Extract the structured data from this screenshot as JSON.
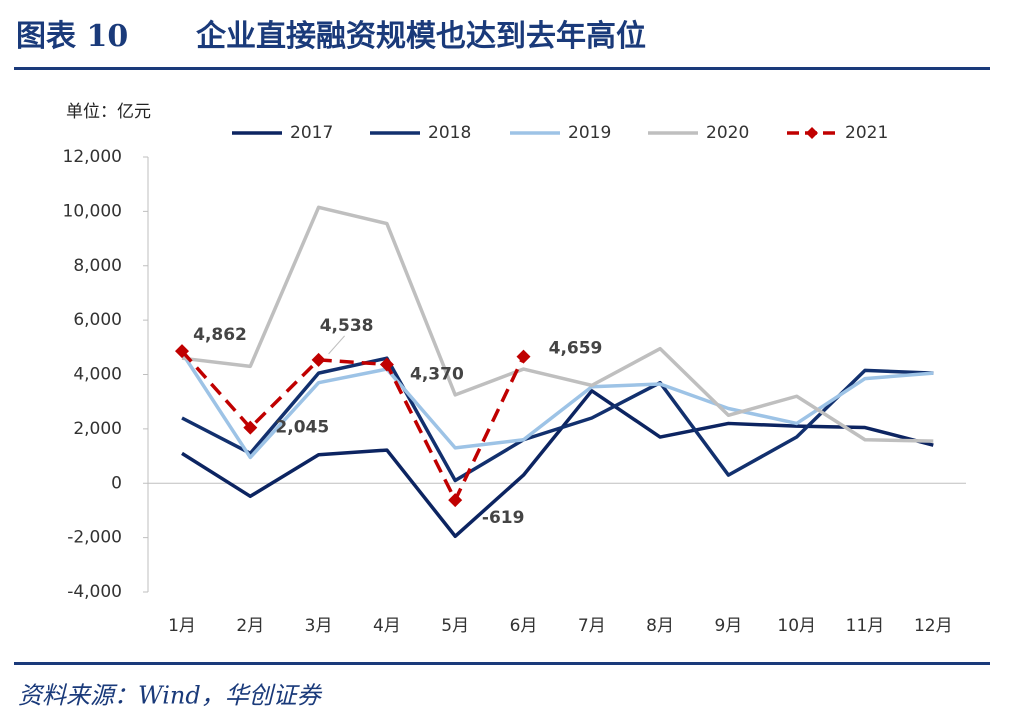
{
  "chart_data": {
    "type": "line",
    "figure_label": "图表 10",
    "title": "企业直接融资规模也达到去年高位",
    "unit_label": "单位：亿元",
    "source": "资料来源：Wind，华创证券",
    "categories": [
      "1月",
      "2月",
      "3月",
      "4月",
      "5月",
      "6月",
      "7月",
      "8月",
      "9月",
      "10月",
      "11月",
      "12月"
    ],
    "series": [
      {
        "name": "2017",
        "color": "#0c2461",
        "values": [
          1100,
          -480,
          1050,
          1220,
          -1950,
          300,
          3400,
          1700,
          2200,
          2100,
          2050,
          1400
        ]
      },
      {
        "name": "2018",
        "color": "#12306e",
        "values": [
          2400,
          1100,
          4050,
          4600,
          100,
          1600,
          2400,
          3700,
          300,
          1700,
          4150,
          4050
        ]
      },
      {
        "name": "2019",
        "color": "#9dc3e6",
        "values": [
          4800,
          950,
          3700,
          4200,
          1300,
          1600,
          3550,
          3650,
          2750,
          2200,
          3850,
          4050
        ]
      },
      {
        "name": "2020",
        "color": "#bfbfbf",
        "values": [
          4600,
          4300,
          10150,
          9550,
          3250,
          4200,
          3600,
          4950,
          2500,
          3200,
          1600,
          1550
        ]
      },
      {
        "name": "2021",
        "color": "#c00000",
        "dashed": true,
        "marker": "diamond",
        "values": [
          4862,
          2045,
          4538,
          4370,
          -619,
          4659,
          null,
          null,
          null,
          null,
          null,
          null
        ],
        "value_labels": [
          "4,862",
          "2,045",
          "4,538",
          "4,370",
          "-619",
          "4,659",
          null,
          null,
          null,
          null,
          null,
          null
        ]
      }
    ],
    "ylim": [
      -4000,
      12000
    ],
    "yticks": [
      {
        "value": -4000,
        "label": "-4,000"
      },
      {
        "value": -2000,
        "label": "-2,000"
      },
      0,
      {
        "value": 2000,
        "label": "2,000"
      },
      {
        "value": 4000,
        "label": "4,000"
      },
      {
        "value": 6000,
        "label": "6,000"
      },
      {
        "value": 8000,
        "label": "8,000"
      },
      {
        "value": 10000,
        "label": "10,000"
      },
      {
        "value": 12000,
        "label": "12,000"
      }
    ],
    "grid": false,
    "legend": "top"
  }
}
